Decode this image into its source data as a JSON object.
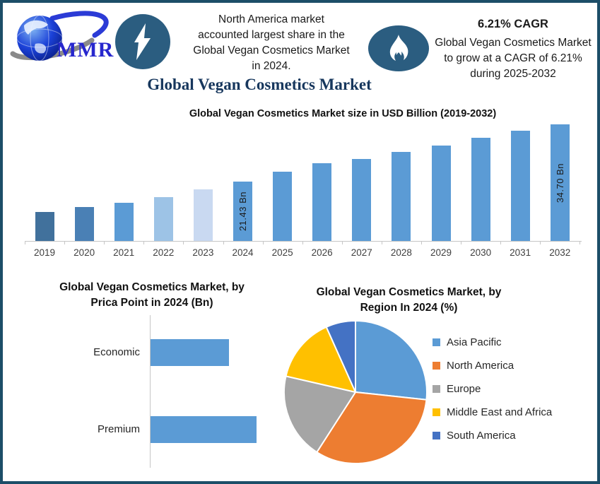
{
  "header": {
    "logo_text": "MMR",
    "headline_lines": [
      "North America market",
      "accounted largest share in the",
      "Global Vegan Cosmetics Market",
      "in 2024."
    ],
    "cagr_title": "6.21% CAGR",
    "cagr_lines": [
      "Global Vegan Cosmetics Market",
      "to grow at a CAGR of 6.21%",
      "during 2025-2032"
    ]
  },
  "main_title": "Global Vegan Cosmetics Market",
  "colors": {
    "border": "#1D4E68",
    "badge": "#2B5D80",
    "title_navy": "#17375D",
    "logo_blue": "#2727CE",
    "bar_blue": "#5B9BD5",
    "axis_gray": "#C6C6C6"
  },
  "chart_data": [
    {
      "type": "bar",
      "title": "Global Vegan Cosmetics Market size in USD Billion (2019-2032)",
      "ylabel": "USD Billion",
      "ylim": [
        7.7,
        36
      ],
      "gridlines": false,
      "points": [
        {
          "year": "2019",
          "value": 14.5,
          "color": "#41719C",
          "label": null
        },
        {
          "year": "2020",
          "value": 15.5,
          "color": "#4A80B5",
          "label": null
        },
        {
          "year": "2021",
          "value": 16.6,
          "color": "#5B9BD5",
          "label": null
        },
        {
          "year": "2022",
          "value": 17.9,
          "color": "#9DC3E6",
          "label": null
        },
        {
          "year": "2023",
          "value": 19.6,
          "color": "#C9D9F1",
          "label": null
        },
        {
          "year": "2024",
          "value": 21.43,
          "color": "#5B9BD5",
          "label": "21.43 Bn"
        },
        {
          "year": "2025",
          "value": 23.7,
          "color": "#5B9BD5",
          "label": null
        },
        {
          "year": "2026",
          "value": 25.8,
          "color": "#5B9BD5",
          "label": null
        },
        {
          "year": "2027",
          "value": 26.8,
          "color": "#5B9BD5",
          "label": null
        },
        {
          "year": "2028",
          "value": 28.4,
          "color": "#5B9BD5",
          "label": null
        },
        {
          "year": "2029",
          "value": 29.9,
          "color": "#5B9BD5",
          "label": null
        },
        {
          "year": "2030",
          "value": 31.7,
          "color": "#5B9BD5",
          "label": null
        },
        {
          "year": "2031",
          "value": 33.2,
          "color": "#5B9BD5",
          "label": null
        },
        {
          "year": "2032",
          "value": 34.7,
          "color": "#5B9BD5",
          "label": "34.70 Bn"
        }
      ]
    },
    {
      "type": "bar",
      "orientation": "horizontal",
      "title_lines": [
        "Global Vegan Cosmetics Market, by",
        "Prica Point in 2024 (Bn)"
      ],
      "categories": [
        "Economic",
        "Premium"
      ],
      "values": [
        9.1,
        12.3
      ],
      "xlim": [
        0,
        15
      ],
      "color": "#5B9BD5"
    },
    {
      "type": "pie",
      "title_lines": [
        "Global Vegan Cosmetics Market, by",
        "Region In 2024 (%)"
      ],
      "start_angle_deg": 0,
      "legend_position": "right",
      "segments": [
        {
          "label": "Asia Pacific",
          "value": 26.7,
          "color": "#5B9BD5"
        },
        {
          "label": "North America",
          "value": 32.4,
          "color": "#ED7D31"
        },
        {
          "label": "Europe",
          "value": 19.5,
          "color": "#A5A5A5"
        },
        {
          "label": "Middle East and Africa",
          "value": 14.7,
          "color": "#FFC000"
        },
        {
          "label": "South America",
          "value": 6.7,
          "color": "#4472C4"
        }
      ]
    }
  ]
}
